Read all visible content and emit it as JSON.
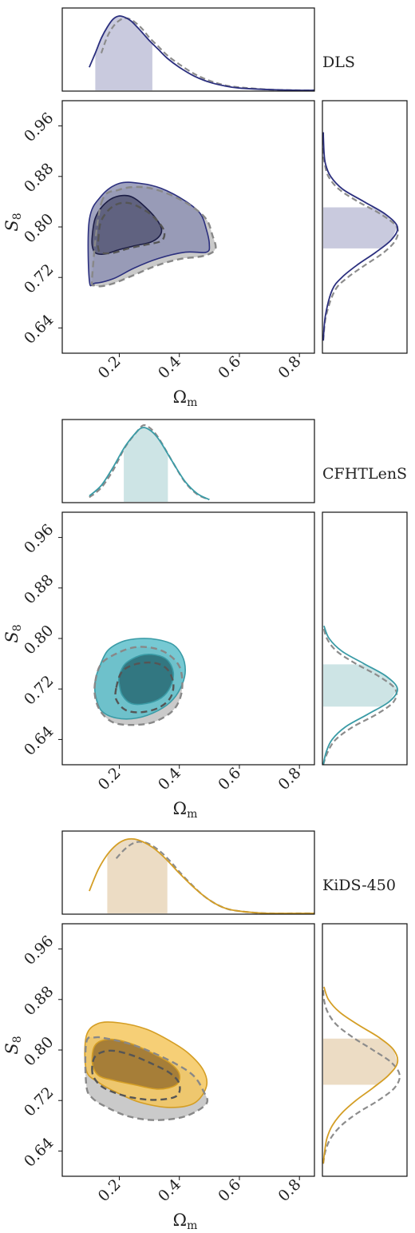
{
  "chart_data": [
    {
      "type": "contour",
      "survey": "DLS",
      "color": "#2b2f7e",
      "fill_outer": "#8f93b4",
      "fill_inner": "#5a5c7a",
      "marginal_fill": "#c9cade",
      "xlabel": "Ωm",
      "ylabel": "S8",
      "xlim": [
        0.01,
        0.85
      ],
      "ylim": [
        0.6,
        1.0
      ],
      "xticks": [
        "0.2",
        "0.4",
        "0.6",
        "0.8"
      ],
      "yticks": [
        "0.64",
        "0.72",
        "0.80",
        "0.88",
        "0.96"
      ],
      "contour_outer": [
        [
          0.1,
          0.811
        ],
        [
          0.14,
          0.849
        ],
        [
          0.2,
          0.869
        ],
        [
          0.27,
          0.869
        ],
        [
          0.34,
          0.861
        ],
        [
          0.42,
          0.841
        ],
        [
          0.47,
          0.821
        ],
        [
          0.49,
          0.796
        ],
        [
          0.5,
          0.772
        ],
        [
          0.49,
          0.76
        ],
        [
          0.42,
          0.76
        ],
        [
          0.33,
          0.75
        ],
        [
          0.25,
          0.735
        ],
        [
          0.18,
          0.718
        ],
        [
          0.12,
          0.711
        ],
        [
          0.1,
          0.716
        ]
      ],
      "contour_inner": [
        [
          0.11,
          0.786
        ],
        [
          0.12,
          0.814
        ],
        [
          0.15,
          0.836
        ],
        [
          0.19,
          0.848
        ],
        [
          0.24,
          0.848
        ],
        [
          0.29,
          0.83
        ],
        [
          0.33,
          0.808
        ],
        [
          0.34,
          0.791
        ],
        [
          0.31,
          0.777
        ],
        [
          0.25,
          0.77
        ],
        [
          0.2,
          0.764
        ],
        [
          0.15,
          0.757
        ],
        [
          0.12,
          0.759
        ],
        [
          0.11,
          0.77
        ]
      ],
      "ref_outer": [
        [
          0.14,
          0.838
        ],
        [
          0.2,
          0.859
        ],
        [
          0.28,
          0.863
        ],
        [
          0.36,
          0.853
        ],
        [
          0.44,
          0.833
        ],
        [
          0.49,
          0.812
        ],
        [
          0.51,
          0.787
        ],
        [
          0.52,
          0.765
        ],
        [
          0.48,
          0.754
        ],
        [
          0.4,
          0.749
        ],
        [
          0.32,
          0.738
        ],
        [
          0.24,
          0.722
        ],
        [
          0.17,
          0.709
        ],
        [
          0.12,
          0.707
        ],
        [
          0.11,
          0.723
        ]
      ],
      "ref_inner": [
        [
          0.13,
          0.779
        ],
        [
          0.14,
          0.81
        ],
        [
          0.18,
          0.833
        ],
        [
          0.23,
          0.838
        ],
        [
          0.29,
          0.825
        ],
        [
          0.33,
          0.808
        ],
        [
          0.35,
          0.792
        ],
        [
          0.34,
          0.778
        ],
        [
          0.29,
          0.772
        ],
        [
          0.23,
          0.766
        ],
        [
          0.18,
          0.759
        ],
        [
          0.14,
          0.759
        ],
        [
          0.13,
          0.766
        ]
      ],
      "marginal_x": {
        "x": [
          0.1,
          0.12,
          0.14,
          0.16,
          0.18,
          0.2,
          0.22,
          0.24,
          0.26,
          0.28,
          0.3,
          0.33,
          0.36,
          0.4,
          0.45,
          0.5,
          0.55,
          0.6,
          0.7,
          0.8,
          0.85
        ],
        "density": [
          0.31,
          0.5,
          0.7,
          0.85,
          0.96,
          1.0,
          0.98,
          0.93,
          0.85,
          0.76,
          0.67,
          0.55,
          0.43,
          0.31,
          0.19,
          0.11,
          0.06,
          0.03,
          0.01,
          0.0,
          0.0
        ],
        "ref_density": [
          0.0,
          0.0,
          0.5,
          0.72,
          0.86,
          0.94,
          0.97,
          0.95,
          0.89,
          0.81,
          0.71,
          0.59,
          0.47,
          0.35,
          0.22,
          0.13,
          0.07,
          0.04,
          0.01,
          0.0,
          0.0
        ],
        "interval": [
          0.12,
          0.31
        ]
      },
      "marginal_y": {
        "y": [
          0.62,
          0.66,
          0.7,
          0.72,
          0.74,
          0.76,
          0.78,
          0.8,
          0.82,
          0.84,
          0.86,
          0.88,
          0.9,
          0.92,
          0.95
        ],
        "density": [
          0.0,
          0.03,
          0.12,
          0.25,
          0.46,
          0.71,
          0.92,
          1.0,
          0.84,
          0.55,
          0.26,
          0.1,
          0.03,
          0.01,
          0.0
        ],
        "ref_density": [
          0.0,
          0.04,
          0.16,
          0.33,
          0.57,
          0.82,
          0.98,
          0.99,
          0.78,
          0.47,
          0.21,
          0.07,
          0.02,
          0.0,
          0.0
        ],
        "interval": [
          0.766,
          0.831
        ]
      }
    },
    {
      "type": "contour",
      "survey": "CFHTLenS",
      "color": "#3a9ba6",
      "fill_outer": "#5ec0cb",
      "fill_inner": "#2b6f79",
      "marginal_fill": "#cde4e5",
      "xlabel": "Ωm",
      "ylabel": "S8",
      "xlim": [
        0.01,
        0.85
      ],
      "ylim": [
        0.6,
        1.0
      ],
      "xticks": [
        "0.2",
        "0.4",
        "0.6",
        "0.8"
      ],
      "yticks": [
        "0.64",
        "0.72",
        "0.80",
        "0.88",
        "0.96"
      ],
      "contour_outer": [
        [
          0.13,
          0.75
        ],
        [
          0.16,
          0.78
        ],
        [
          0.21,
          0.795
        ],
        [
          0.27,
          0.8
        ],
        [
          0.33,
          0.798
        ],
        [
          0.38,
          0.79
        ],
        [
          0.41,
          0.772
        ],
        [
          0.42,
          0.75
        ],
        [
          0.41,
          0.728
        ],
        [
          0.38,
          0.704
        ],
        [
          0.33,
          0.686
        ],
        [
          0.26,
          0.674
        ],
        [
          0.19,
          0.674
        ],
        [
          0.14,
          0.686
        ],
        [
          0.12,
          0.712
        ],
        [
          0.12,
          0.733
        ]
      ],
      "contour_inner": [
        [
          0.2,
          0.741
        ],
        [
          0.22,
          0.76
        ],
        [
          0.27,
          0.773
        ],
        [
          0.32,
          0.774
        ],
        [
          0.36,
          0.766
        ],
        [
          0.38,
          0.746
        ],
        [
          0.37,
          0.723
        ],
        [
          0.34,
          0.706
        ],
        [
          0.29,
          0.697
        ],
        [
          0.24,
          0.697
        ],
        [
          0.21,
          0.71
        ],
        [
          0.2,
          0.727
        ]
      ],
      "ref_outer": [
        [
          0.12,
          0.732
        ],
        [
          0.14,
          0.76
        ],
        [
          0.19,
          0.776
        ],
        [
          0.25,
          0.786
        ],
        [
          0.31,
          0.785
        ],
        [
          0.36,
          0.776
        ],
        [
          0.4,
          0.756
        ],
        [
          0.41,
          0.728
        ],
        [
          0.4,
          0.702
        ],
        [
          0.37,
          0.682
        ],
        [
          0.31,
          0.667
        ],
        [
          0.24,
          0.663
        ],
        [
          0.18,
          0.667
        ],
        [
          0.14,
          0.683
        ],
        [
          0.12,
          0.706
        ]
      ],
      "ref_inner": [
        [
          0.19,
          0.722
        ],
        [
          0.21,
          0.748
        ],
        [
          0.26,
          0.76
        ],
        [
          0.32,
          0.761
        ],
        [
          0.36,
          0.751
        ],
        [
          0.38,
          0.729
        ],
        [
          0.37,
          0.706
        ],
        [
          0.33,
          0.69
        ],
        [
          0.27,
          0.683
        ],
        [
          0.22,
          0.687
        ],
        [
          0.19,
          0.703
        ]
      ],
      "marginal_x": {
        "x": [
          0.1,
          0.14,
          0.18,
          0.22,
          0.26,
          0.28,
          0.3,
          0.32,
          0.34,
          0.38,
          0.42,
          0.46,
          0.5
        ],
        "density": [
          0.08,
          0.22,
          0.47,
          0.75,
          0.95,
          1.0,
          0.97,
          0.9,
          0.79,
          0.52,
          0.27,
          0.11,
          0.03
        ],
        "ref_density": [
          0.06,
          0.19,
          0.43,
          0.74,
          0.95,
          1.03,
          1.0,
          0.92,
          0.8,
          0.52,
          0.26,
          0.1,
          0.03
        ],
        "interval": [
          0.215,
          0.362
        ]
      },
      "marginal_y": {
        "y": [
          0.6,
          0.62,
          0.64,
          0.66,
          0.68,
          0.7,
          0.72,
          0.74,
          0.76,
          0.78,
          0.8,
          0.82
        ],
        "density": [
          0.0,
          0.04,
          0.12,
          0.3,
          0.6,
          0.89,
          1.0,
          0.85,
          0.55,
          0.25,
          0.08,
          0.01
        ],
        "ref_density": [
          0.0,
          0.06,
          0.17,
          0.4,
          0.72,
          0.95,
          0.97,
          0.75,
          0.44,
          0.18,
          0.05,
          0.0
        ],
        "interval": [
          0.692,
          0.759
        ]
      }
    },
    {
      "type": "contour",
      "survey": "KiDS-450",
      "color": "#d49e25",
      "fill_outer": "#f5c75e",
      "fill_inner": "#9d7632",
      "marginal_fill": "#ecdcc4",
      "xlabel": "Ωm",
      "ylabel": "S8",
      "xlim": [
        0.01,
        0.85
      ],
      "ylim": [
        0.6,
        1.0
      ],
      "xticks": [
        "0.2",
        "0.4",
        "0.6",
        "0.8"
      ],
      "yticks": [
        "0.64",
        "0.72",
        "0.80",
        "0.88",
        "0.96"
      ],
      "contour_outer": [
        [
          0.09,
          0.822
        ],
        [
          0.13,
          0.842
        ],
        [
          0.2,
          0.843
        ],
        [
          0.29,
          0.833
        ],
        [
          0.37,
          0.814
        ],
        [
          0.43,
          0.795
        ],
        [
          0.48,
          0.768
        ],
        [
          0.49,
          0.742
        ],
        [
          0.45,
          0.716
        ],
        [
          0.37,
          0.709
        ],
        [
          0.27,
          0.717
        ],
        [
          0.19,
          0.733
        ],
        [
          0.13,
          0.749
        ],
        [
          0.09,
          0.768
        ]
      ],
      "contour_inner": [
        [
          0.11,
          0.78
        ],
        [
          0.12,
          0.808
        ],
        [
          0.17,
          0.817
        ],
        [
          0.24,
          0.81
        ],
        [
          0.31,
          0.795
        ],
        [
          0.37,
          0.779
        ],
        [
          0.4,
          0.762
        ],
        [
          0.39,
          0.745
        ],
        [
          0.33,
          0.738
        ],
        [
          0.25,
          0.745
        ],
        [
          0.18,
          0.752
        ],
        [
          0.13,
          0.76
        ]
      ],
      "ref_outer": [
        [
          0.09,
          0.812
        ],
        [
          0.12,
          0.82
        ],
        [
          0.16,
          0.818
        ],
        [
          0.24,
          0.809
        ],
        [
          0.32,
          0.794
        ],
        [
          0.4,
          0.775
        ],
        [
          0.45,
          0.758
        ],
        [
          0.48,
          0.735
        ],
        [
          0.49,
          0.715
        ],
        [
          0.42,
          0.695
        ],
        [
          0.32,
          0.689
        ],
        [
          0.23,
          0.695
        ],
        [
          0.16,
          0.709
        ],
        [
          0.11,
          0.724
        ],
        [
          0.09,
          0.745
        ]
      ],
      "ref_inner": [
        [
          0.11,
          0.765
        ],
        [
          0.12,
          0.79
        ],
        [
          0.17,
          0.799
        ],
        [
          0.24,
          0.792
        ],
        [
          0.31,
          0.778
        ],
        [
          0.37,
          0.763
        ],
        [
          0.4,
          0.746
        ],
        [
          0.39,
          0.727
        ],
        [
          0.32,
          0.721
        ],
        [
          0.24,
          0.725
        ],
        [
          0.17,
          0.735
        ],
        [
          0.13,
          0.747
        ]
      ],
      "marginal_x": {
        "x": [
          0.1,
          0.13,
          0.16,
          0.19,
          0.22,
          0.25,
          0.28,
          0.31,
          0.34,
          0.37,
          0.4,
          0.44,
          0.48,
          0.52,
          0.56,
          0.6,
          0.65,
          0.7,
          0.8,
          0.85
        ],
        "density": [
          0.3,
          0.59,
          0.79,
          0.92,
          0.99,
          1.0,
          0.96,
          0.89,
          0.79,
          0.67,
          0.54,
          0.38,
          0.24,
          0.13,
          0.06,
          0.03,
          0.01,
          0.0,
          0.0,
          0.0
        ],
        "ref_density": [
          0.0,
          0.0,
          0.0,
          0.74,
          0.87,
          0.95,
          0.96,
          0.91,
          0.82,
          0.7,
          0.56,
          0.39,
          0.24,
          0.13,
          0.06,
          0.03,
          0.01,
          0.0,
          0.0,
          0.0
        ],
        "interval": [
          0.16,
          0.36
        ]
      },
      "marginal_y": {
        "y": [
          0.62,
          0.64,
          0.66,
          0.68,
          0.7,
          0.72,
          0.74,
          0.76,
          0.78,
          0.8,
          0.82,
          0.84,
          0.86,
          0.88,
          0.9
        ],
        "density": [
          0.0,
          0.02,
          0.05,
          0.12,
          0.25,
          0.44,
          0.67,
          0.88,
          1.0,
          0.95,
          0.75,
          0.47,
          0.22,
          0.07,
          0.01
        ],
        "ref_density": [
          0.0,
          0.03,
          0.1,
          0.24,
          0.46,
          0.74,
          0.96,
          1.03,
          0.92,
          0.67,
          0.4,
          0.18,
          0.06,
          0.01,
          0.0
        ],
        "interval": [
          0.745,
          0.818
        ]
      }
    }
  ]
}
